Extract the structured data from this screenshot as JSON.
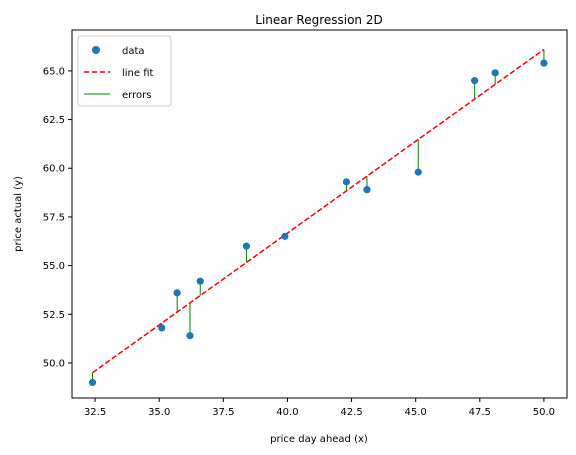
{
  "chart_data": {
    "type": "scatter",
    "title": "Linear Regression 2D",
    "xlabel": "price day ahead (x)",
    "ylabel": "price actual (y)",
    "xlim": [
      31.6,
      50.9
    ],
    "ylim": [
      48.2,
      67.1
    ],
    "xticks": [
      32.5,
      35.0,
      37.5,
      40.0,
      42.5,
      45.0,
      47.5,
      50.0
    ],
    "yticks": [
      50.0,
      52.5,
      55.0,
      57.5,
      60.0,
      62.5,
      65.0
    ],
    "xtick_labels": [
      "32.5",
      "35.0",
      "37.5",
      "40.0",
      "42.5",
      "45.0",
      "47.5",
      "50.0"
    ],
    "ytick_labels": [
      "50.0",
      "52.5",
      "55.0",
      "57.5",
      "60.0",
      "62.5",
      "65.0"
    ],
    "grid": false,
    "legend_position": "top-left",
    "series": [
      {
        "name": "data",
        "kind": "scatter",
        "color": "#1f77b4",
        "points": [
          {
            "x": 32.4,
            "y": 49.0
          },
          {
            "x": 35.1,
            "y": 51.8
          },
          {
            "x": 35.7,
            "y": 53.6
          },
          {
            "x": 36.2,
            "y": 51.4
          },
          {
            "x": 36.6,
            "y": 54.2
          },
          {
            "x": 38.4,
            "y": 56.0
          },
          {
            "x": 39.9,
            "y": 56.5
          },
          {
            "x": 42.3,
            "y": 59.3
          },
          {
            "x": 43.1,
            "y": 58.9
          },
          {
            "x": 45.1,
            "y": 59.8
          },
          {
            "x": 47.3,
            "y": 64.5
          },
          {
            "x": 48.1,
            "y": 64.9
          },
          {
            "x": 50.0,
            "y": 65.4
          }
        ]
      },
      {
        "name": "line fit",
        "kind": "line",
        "style": "dashed",
        "color": "#ff0000",
        "x": [
          32.4,
          50.0
        ],
        "y": [
          49.5,
          66.1
        ]
      },
      {
        "name": "errors",
        "kind": "vlines",
        "color": "#008000"
      }
    ]
  }
}
